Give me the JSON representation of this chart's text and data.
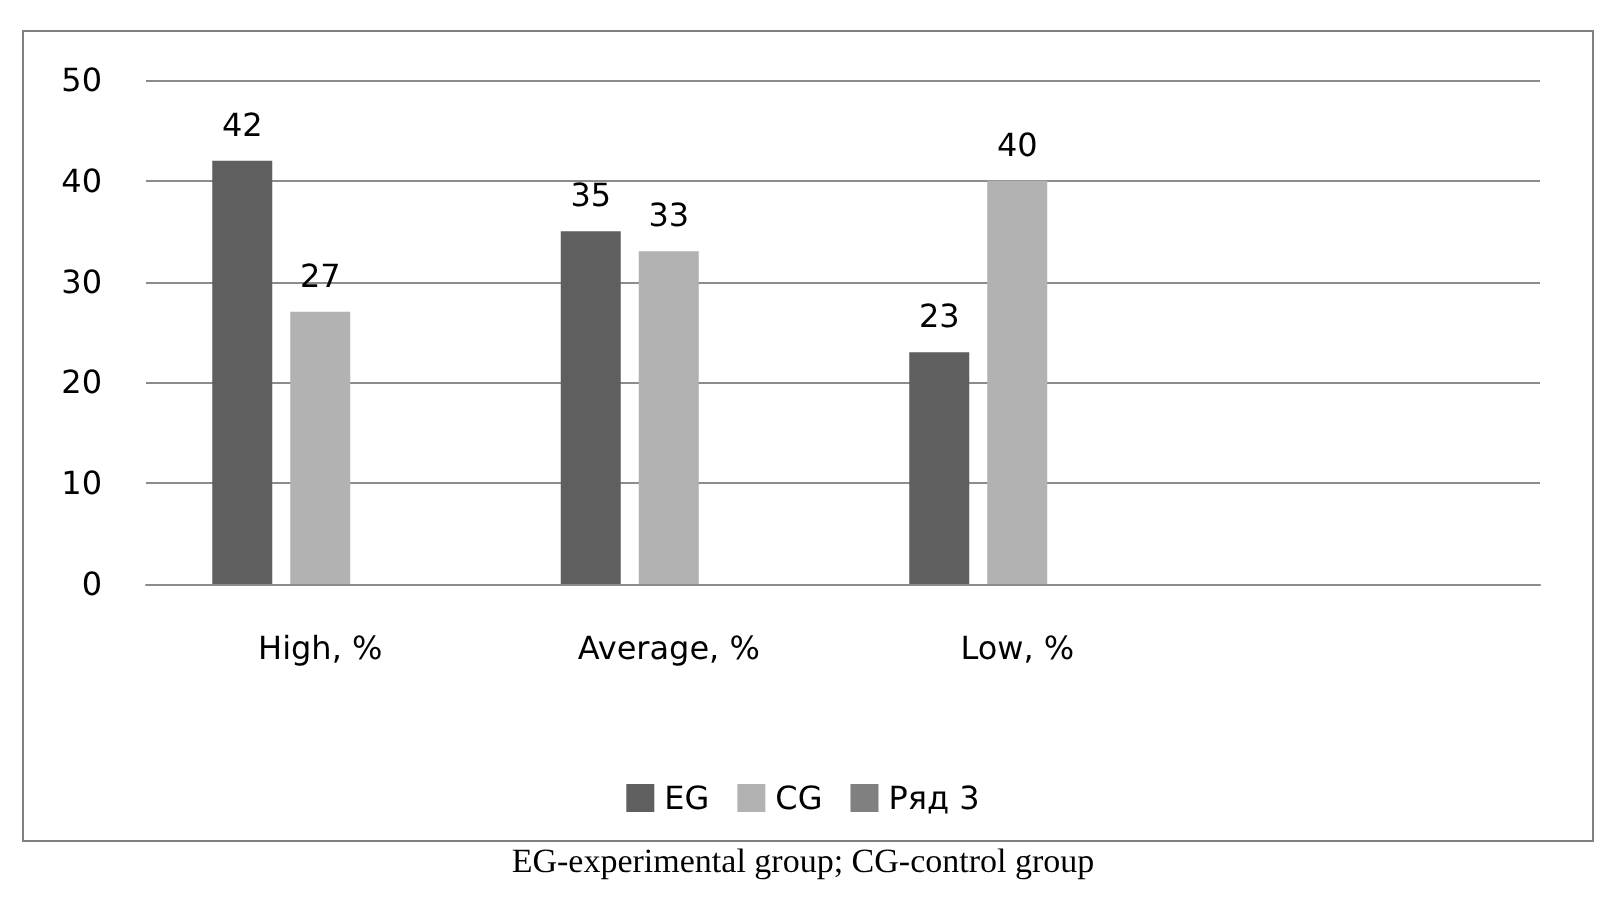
{
  "chart_data": {
    "type": "bar",
    "categories": [
      "High, %",
      "Average, %",
      "Low, %",
      null
    ],
    "series": [
      {
        "name": "EG",
        "color": "#5f5f5f",
        "values": [
          42,
          35,
          23,
          null
        ]
      },
      {
        "name": "CG",
        "color": "#b2b2b2",
        "values": [
          27,
          33,
          40,
          null
        ]
      },
      {
        "name": "Ряд 3",
        "color": "#808080",
        "values": [
          null,
          null,
          null,
          null
        ]
      }
    ],
    "ylim": [
      0,
      50
    ],
    "yticks": [
      0,
      10,
      20,
      30,
      40,
      50
    ],
    "grid": "y",
    "legend": "bottom",
    "data_labels": true,
    "annotations": [
      "EG-experimental group; CG-control group"
    ]
  }
}
